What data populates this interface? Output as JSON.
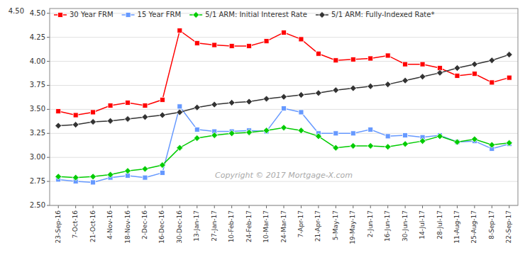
{
  "chart_data": {
    "type": "line",
    "categories": [
      "23-Sep-16",
      "7-Oct-16",
      "21-Oct-16",
      "4-Nov-16",
      "18-Nov-16",
      "2-Dec-16",
      "16-Dec-16",
      "30-Dec-16",
      "13-Jan-17",
      "27-Jan-17",
      "10-Feb-17",
      "24-Feb-17",
      "10-Mar-17",
      "24-Mar-17",
      "7-Apr-17",
      "21-Apr-17",
      "5-May-17",
      "19-May-17",
      "2-Jun-17",
      "16-Jun-17",
      "30-Jun-17",
      "14-Jul-17",
      "28-Jul-17",
      "11-Aug-17",
      "25-Aug-17",
      "8-Sep-17",
      "22-Sep-17"
    ],
    "series": [
      {
        "name": "30 Year FRM",
        "color": "#ff0000",
        "marker": "square",
        "values": [
          3.48,
          3.44,
          3.47,
          3.54,
          3.57,
          3.54,
          3.6,
          4.32,
          4.19,
          4.17,
          4.16,
          4.16,
          4.21,
          4.3,
          4.23,
          4.08,
          4.01,
          4.02,
          4.03,
          4.06,
          3.97,
          3.97,
          3.93,
          3.85,
          3.87,
          3.78,
          3.83
        ]
      },
      {
        "name": "15 Year FRM",
        "color": "#6699ff",
        "marker": "square",
        "values": [
          2.77,
          2.75,
          2.74,
          2.79,
          2.81,
          2.79,
          2.84,
          3.53,
          3.29,
          3.27,
          3.27,
          3.28,
          3.27,
          3.51,
          3.47,
          3.25,
          3.25,
          3.25,
          3.29,
          3.22,
          3.23,
          3.21,
          3.23,
          3.16,
          3.17,
          3.09,
          3.14
        ]
      },
      {
        "name": "5/1 ARM: Initial Interest Rate",
        "color": "#00cc00",
        "marker": "diamond",
        "values": [
          2.8,
          2.79,
          2.8,
          2.82,
          2.86,
          2.88,
          2.92,
          3.1,
          3.2,
          3.23,
          3.25,
          3.26,
          3.28,
          3.31,
          3.28,
          3.22,
          3.1,
          3.12,
          3.12,
          3.11,
          3.14,
          3.17,
          3.22,
          3.16,
          3.19,
          3.13,
          3.15
        ]
      },
      {
        "name": "5/1 ARM: Fully-Indexed Rate*",
        "color": "#333333",
        "marker": "diamond",
        "values": [
          3.33,
          3.34,
          3.37,
          3.38,
          3.4,
          3.42,
          3.44,
          3.47,
          3.52,
          3.55,
          3.57,
          3.58,
          3.61,
          3.63,
          3.65,
          3.67,
          3.7,
          3.72,
          3.74,
          3.76,
          3.8,
          3.84,
          3.88,
          3.93,
          3.97,
          4.01,
          4.07
        ]
      }
    ],
    "ylim": [
      2.5,
      4.55
    ],
    "yticks": [
      {
        "value": 2.5,
        "label": "2.50"
      },
      2.75,
      {
        "value": 3,
        "label": "3.00"
      },
      3.25,
      {
        "value": 3.5,
        "label": "3.50"
      },
      3.75,
      {
        "value": 4,
        "label": "4.00"
      },
      4.25,
      {
        "value": 4.5,
        "label": "4.50"
      }
    ],
    "grid": true,
    "legend": "upper left",
    "annotations": [
      "4.50",
      "Copyright © 2017 Mortgage-X.com"
    ]
  }
}
